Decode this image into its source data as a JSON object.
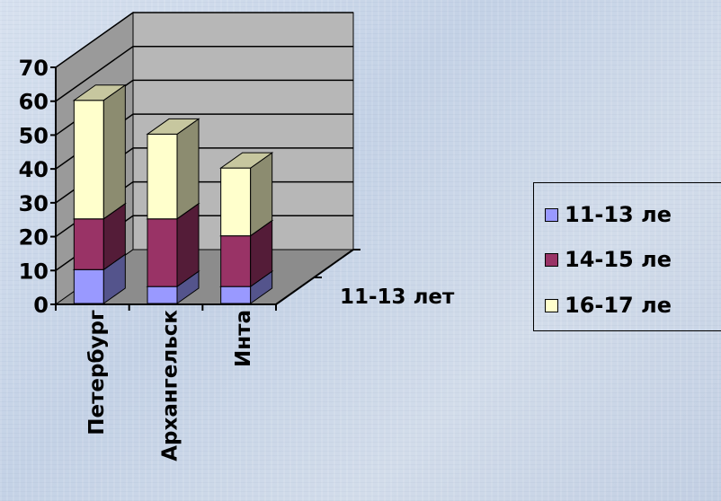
{
  "chart_data": {
    "type": "bar",
    "subtype": "3d-stacked-column",
    "categories": [
      "Петербург",
      "Архангельск",
      "Инта"
    ],
    "series": [
      {
        "name": "11-13 лет",
        "values": [
          10,
          5,
          5
        ],
        "color": "#9999ff"
      },
      {
        "name": "14-15 лет",
        "values": [
          15,
          20,
          15
        ],
        "color": "#993366"
      },
      {
        "name": "16-17 лет",
        "values": [
          35,
          25,
          20
        ],
        "color": "#ffffcc"
      }
    ],
    "yticks": [
      0,
      10,
      20,
      30,
      40,
      50,
      60,
      70
    ],
    "ylim": [
      0,
      70
    ],
    "depth_label": "11-13 лет",
    "grid": true,
    "legend_position": "right",
    "colors": {
      "wall": "#b7b7b7",
      "side_wall": "#9a9a9a",
      "floor": "#8c8c8c",
      "grid": "#000000"
    }
  },
  "legend": {
    "items": [
      {
        "label": "11-13 ле",
        "color": "#9999ff"
      },
      {
        "label": "14-15 ле",
        "color": "#993366"
      },
      {
        "label": "16-17 ле",
        "color": "#ffffcc"
      }
    ]
  }
}
